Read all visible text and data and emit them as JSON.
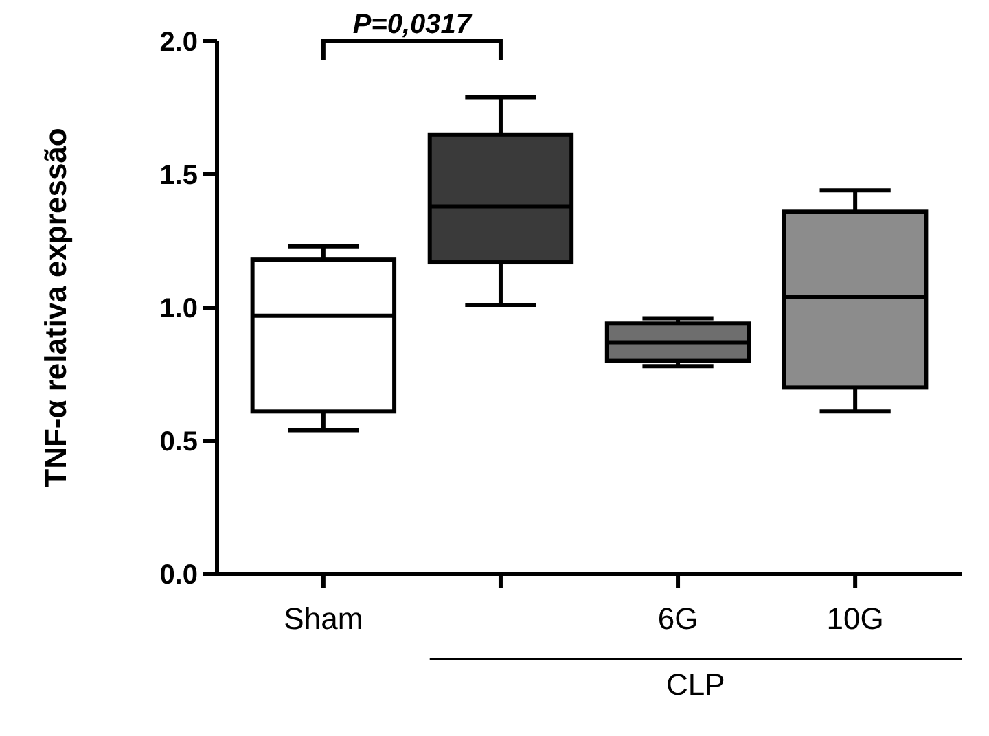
{
  "chart_data": {
    "type": "box",
    "ylabel": "TNF-α relativa expressão",
    "categories": [
      "Sham",
      null,
      "6G",
      "10G"
    ],
    "boxes": [
      {
        "low": 0.54,
        "q1": 0.61,
        "median": 0.97,
        "q3": 1.18,
        "high": 1.23
      },
      {
        "low": 1.01,
        "q1": 1.17,
        "median": 1.38,
        "q3": 1.65,
        "high": 1.79
      },
      {
        "low": 0.78,
        "q1": 0.8,
        "median": 0.87,
        "q3": 0.94,
        "high": 0.96
      },
      {
        "low": 0.61,
        "q1": 0.7,
        "median": 1.04,
        "q3": 1.36,
        "high": 1.44
      }
    ],
    "colors": [
      "#ffffff",
      "#3a3a3a",
      "#6e6e6e",
      "#8c8c8c"
    ],
    "ylim": [
      0,
      2
    ],
    "yticks": [
      {
        "value": 0,
        "label": "0.0"
      },
      {
        "value": 0.5,
        "label": "0.5"
      },
      {
        "value": 1,
        "label": "1.0"
      },
      {
        "value": 1.5,
        "label": "1.5"
      },
      {
        "value": 2,
        "label": "2.0"
      }
    ],
    "annotations": [
      "P=0,0317",
      "CLP"
    ]
  }
}
